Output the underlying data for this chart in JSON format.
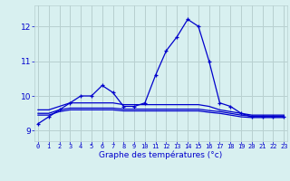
{
  "xlabel": "Graphe des températures (°c)",
  "bg_color": "#d8f0f0",
  "grid_color": "#b8d0d0",
  "line_color": "#0000cc",
  "x_ticks": [
    0,
    1,
    2,
    3,
    4,
    5,
    6,
    7,
    8,
    9,
    10,
    11,
    12,
    13,
    14,
    15,
    16,
    17,
    18,
    19,
    20,
    21,
    22,
    23
  ],
  "x_labels": [
    "0",
    "1",
    "2",
    "3",
    "4",
    "5",
    "6",
    "7",
    "8",
    "9",
    "10",
    "11",
    "12",
    "13",
    "14",
    "15",
    "16",
    "17",
    "18",
    "19",
    "20",
    "21",
    "22",
    "23"
  ],
  "y_ticks": [
    9,
    10,
    11,
    12
  ],
  "ylim": [
    8.7,
    12.6
  ],
  "xlim": [
    -0.3,
    23.3
  ],
  "series": [
    [
      9.2,
      9.4,
      9.6,
      9.8,
      10.0,
      10.0,
      10.3,
      10.1,
      9.7,
      9.7,
      9.8,
      10.6,
      11.3,
      11.7,
      12.2,
      12.0,
      11.0,
      9.8,
      9.7,
      9.5,
      9.4,
      9.4,
      9.4,
      9.4
    ],
    [
      9.6,
      9.6,
      9.7,
      9.8,
      9.8,
      9.8,
      9.8,
      9.8,
      9.75,
      9.75,
      9.75,
      9.75,
      9.75,
      9.75,
      9.75,
      9.75,
      9.7,
      9.6,
      9.55,
      9.5,
      9.45,
      9.45,
      9.45,
      9.45
    ],
    [
      9.5,
      9.5,
      9.6,
      9.65,
      9.65,
      9.65,
      9.65,
      9.65,
      9.62,
      9.62,
      9.62,
      9.62,
      9.62,
      9.62,
      9.62,
      9.62,
      9.58,
      9.55,
      9.5,
      9.45,
      9.42,
      9.42,
      9.42,
      9.42
    ],
    [
      9.45,
      9.45,
      9.55,
      9.6,
      9.6,
      9.6,
      9.6,
      9.6,
      9.57,
      9.57,
      9.57,
      9.57,
      9.57,
      9.57,
      9.57,
      9.57,
      9.53,
      9.5,
      9.45,
      9.4,
      9.38,
      9.38,
      9.38,
      9.38
    ]
  ]
}
